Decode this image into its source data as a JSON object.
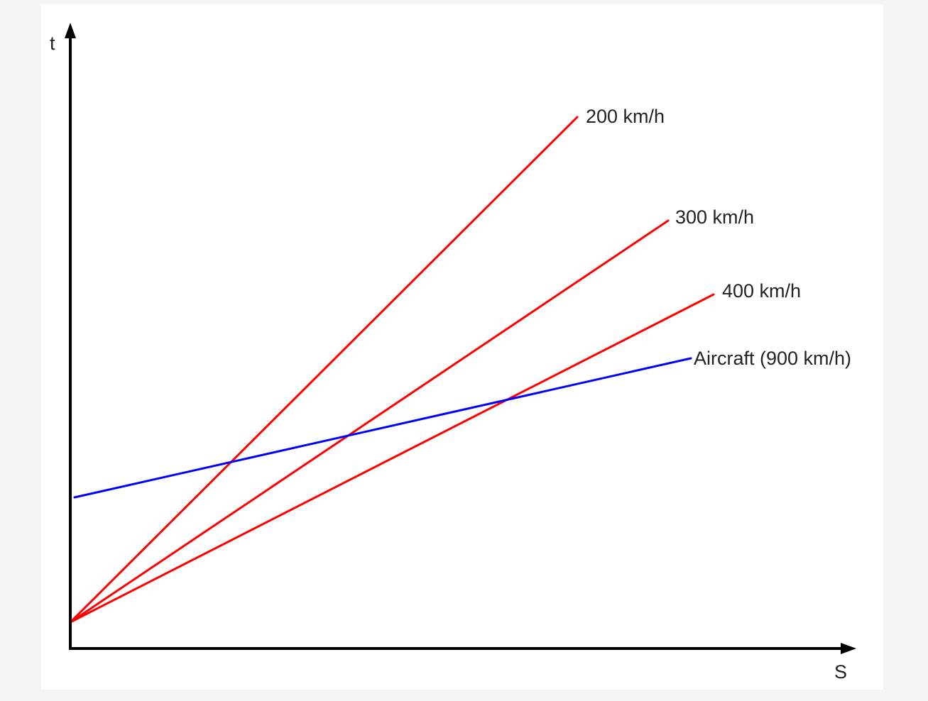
{
  "chart_data": {
    "type": "line",
    "xlabel": "S",
    "ylabel": "t",
    "grid": false,
    "legend": "none",
    "series": [
      {
        "name": "200 km/h",
        "color": "#ff0000",
        "x": [
          0,
          714
        ],
        "y": [
          0,
          712
        ]
      },
      {
        "name": "300 km/h",
        "color": "#ff0000",
        "x": [
          0,
          842
        ],
        "y": [
          0,
          566
        ]
      },
      {
        "name": "400 km/h",
        "color": "#ff0000",
        "x": [
          0,
          906
        ],
        "y": [
          0,
          462
        ]
      },
      {
        "name": "Aircraft (900 km/h)",
        "color": "#0000ff",
        "x": [
          6,
          874
        ],
        "y": [
          176,
          372
        ]
      }
    ]
  }
}
